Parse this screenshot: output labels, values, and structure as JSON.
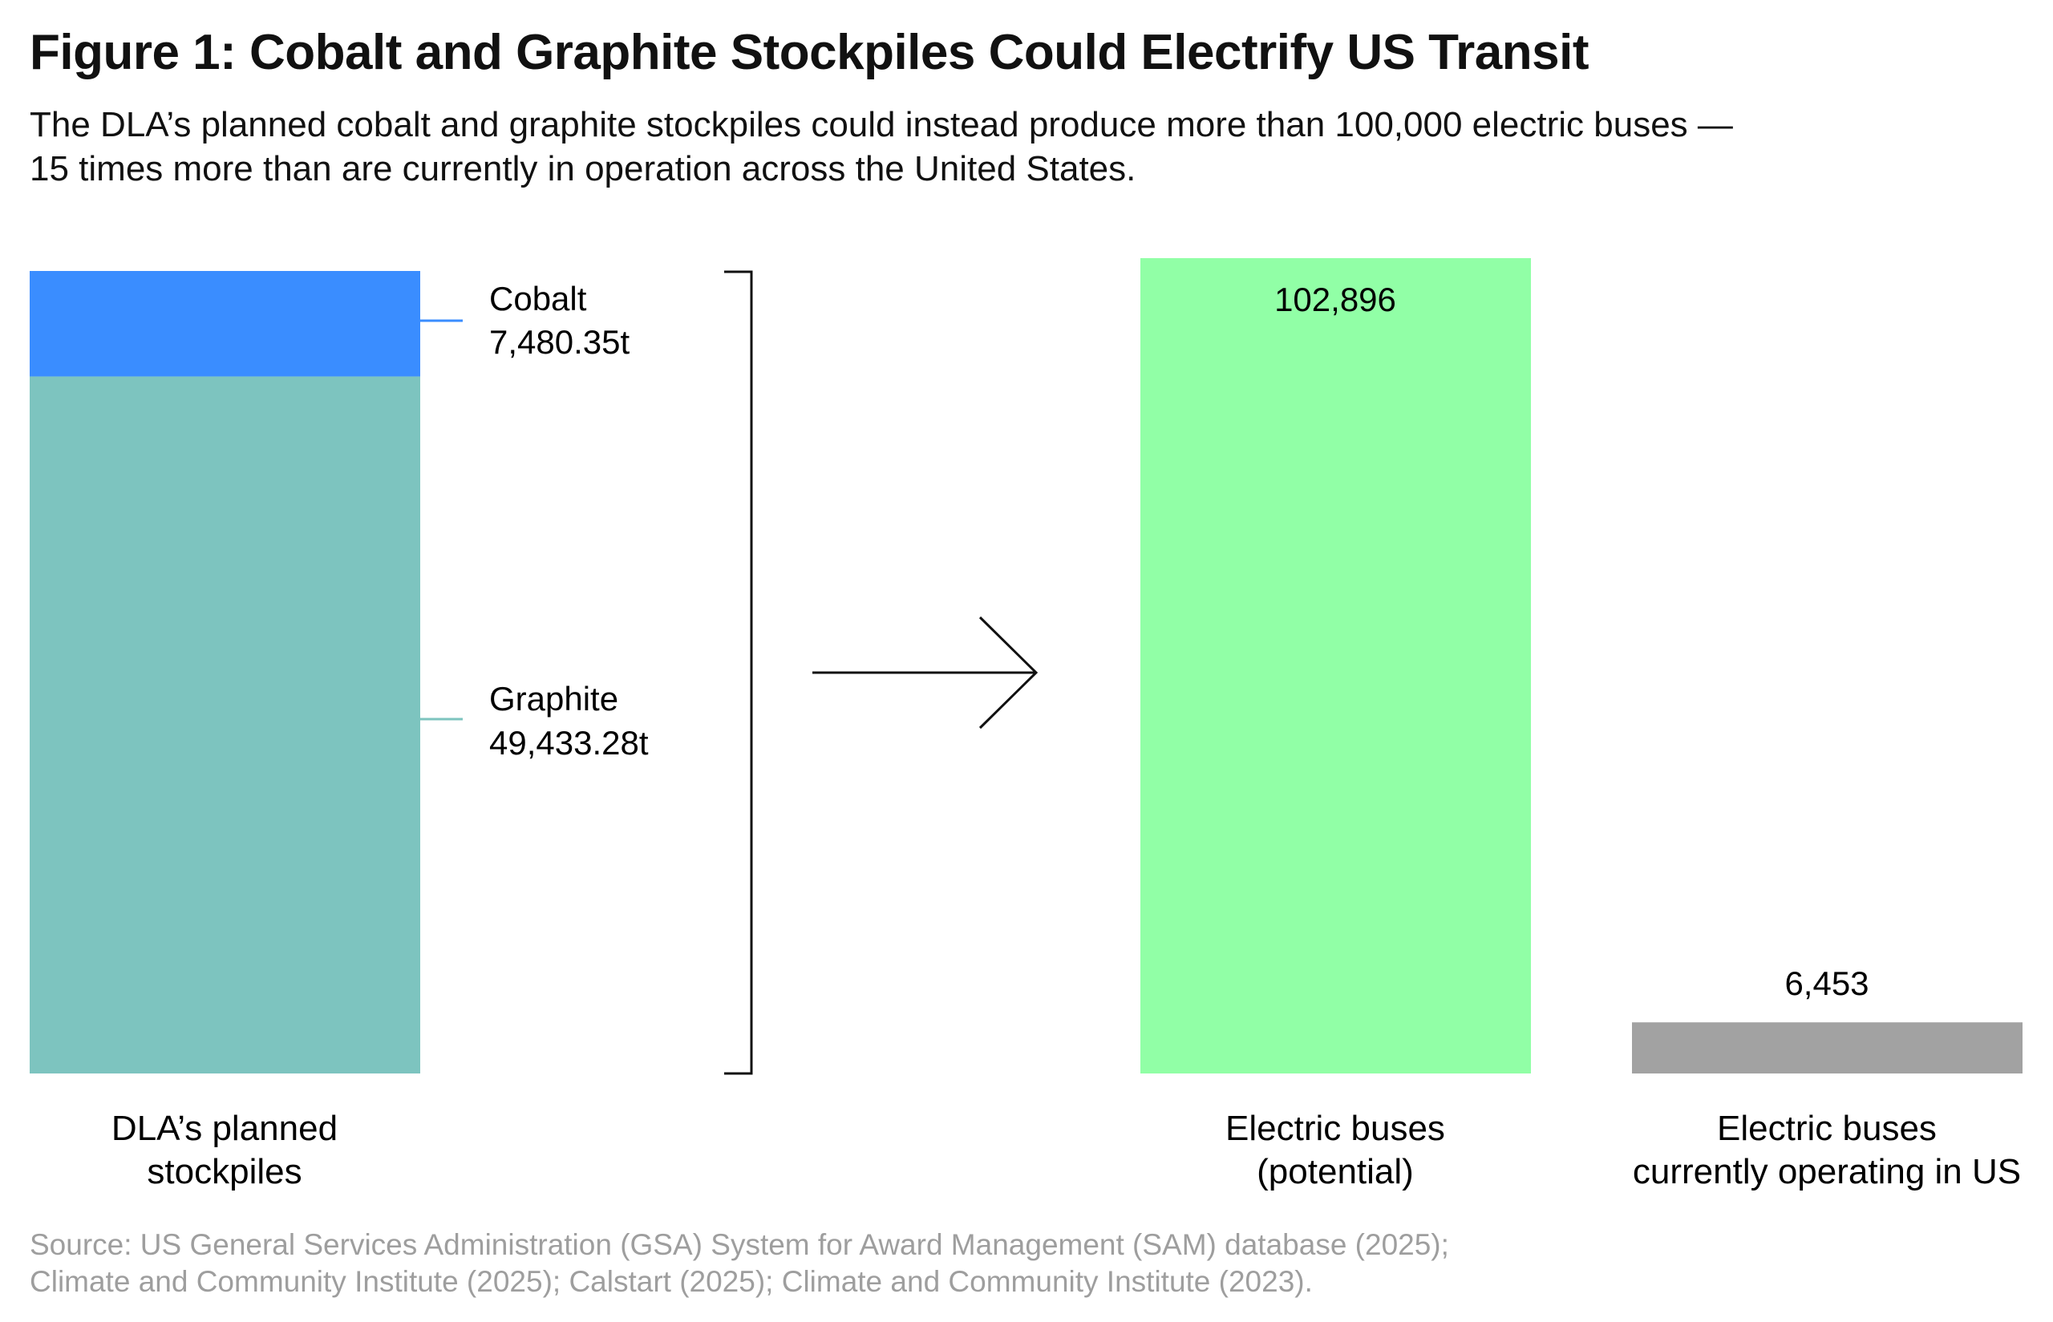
{
  "title": "Figure 1: Cobalt and Graphite Stockpiles Could Electrify US Transit",
  "subtitle": [
    "The DLA’s planned cobalt and graphite stockpiles could instead produce more than 100,000 electric buses —",
    "15 times more than are currently in operation across the United States."
  ],
  "source": [
    "Source: US General Services Administration (GSA) System for Award Management (SAM) database (2025);",
    "Climate and Community Institute (2025); Calstart (2025); Climate and Community Institute (2023)."
  ],
  "chart_data": [
    {
      "type": "bar",
      "stacked": true,
      "title": "DLA’s planned stockpiles",
      "category_label": [
        "DLA’s planned",
        "stockpiles"
      ],
      "unit": "t",
      "series": [
        {
          "name": "Graphite",
          "value": 49433.28,
          "label": "49,433.28t",
          "color": "#7dc4bf"
        },
        {
          "name": "Cobalt",
          "value": 7480.35,
          "label": "7,480.35t",
          "color": "#3a8dff"
        }
      ]
    },
    {
      "type": "bar",
      "title": "Electric buses",
      "categories": [
        {
          "label": [
            "Electric buses",
            "(potential)"
          ],
          "value": 102896,
          "value_label": "102,896",
          "color": "#91ffa6"
        },
        {
          "label": [
            "Electric buses",
            "currently operating in US"
          ],
          "value": 6453,
          "value_label": "6,453",
          "color": "#a2a2a2"
        }
      ],
      "ylim": [
        0,
        102896
      ]
    }
  ],
  "arrow": {
    "direction": "right",
    "color": "#000000"
  }
}
